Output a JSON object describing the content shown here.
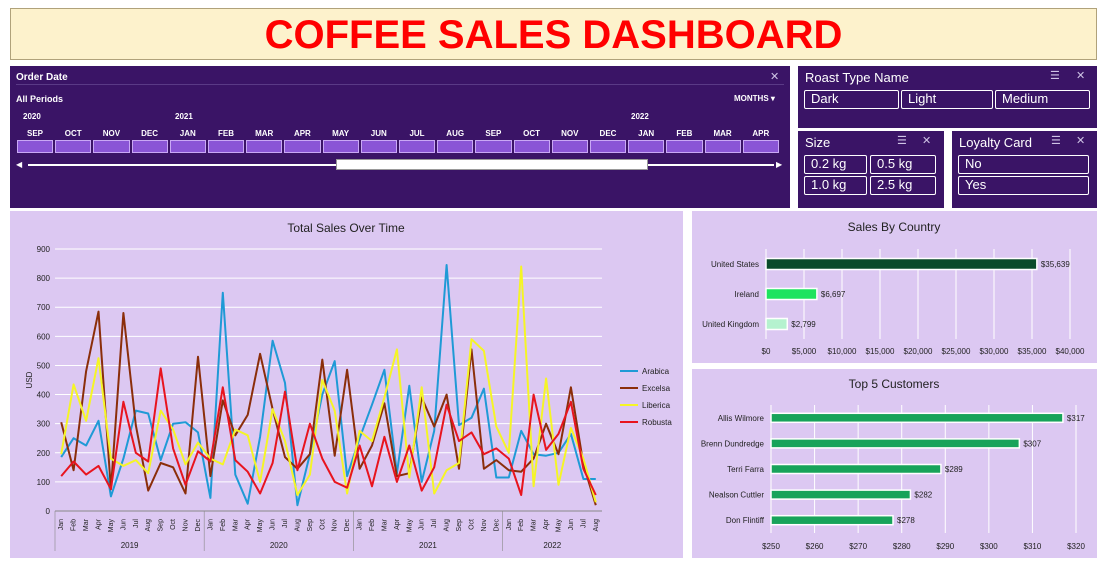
{
  "title": "COFFEE SALES DASHBOARD",
  "timeline": {
    "title": "Order Date",
    "period": "All Periods",
    "granularity": "MONTHS",
    "years": [
      "2020",
      "2021",
      "2022"
    ],
    "months": [
      "SEP",
      "OCT",
      "NOV",
      "DEC",
      "JAN",
      "FEB",
      "MAR",
      "APR",
      "MAY",
      "JUN",
      "JUL",
      "AUG",
      "SEP",
      "OCT",
      "NOV",
      "DEC",
      "JAN",
      "FEB",
      "MAR",
      "APR"
    ]
  },
  "roast_slicer": {
    "title": "Roast Type Name",
    "items": [
      "Dark",
      "Light",
      "Medium"
    ]
  },
  "size_slicer": {
    "title": "Size",
    "items": [
      "0.2 kg",
      "0.5 kg",
      "1.0 kg",
      "2.5 kg"
    ]
  },
  "loyalty_slicer": {
    "title": "Loyalty Card",
    "items": [
      "No",
      "Yes"
    ]
  },
  "chart_data": [
    {
      "type": "line",
      "title": "Total Sales Over Time",
      "ylabel": "USD",
      "xlabel": "",
      "ylim": [
        0,
        900
      ],
      "yticks": [
        0,
        100,
        200,
        300,
        400,
        500,
        600,
        700,
        800,
        900
      ],
      "legend_position": "right",
      "x": [
        "Jan",
        "Feb",
        "Mar",
        "Apr",
        "May",
        "Jun",
        "Jul",
        "Aug",
        "Sep",
        "Oct",
        "Nov",
        "Dec",
        "Jan",
        "Feb",
        "Mar",
        "Apr",
        "May",
        "Jun",
        "Jul",
        "Aug",
        "Sep",
        "Oct",
        "Nov",
        "Dec",
        "Jan",
        "Feb",
        "Mar",
        "Apr",
        "May",
        "Jun",
        "Jul",
        "Aug",
        "Sep",
        "Oct",
        "Nov",
        "Dec",
        "Jan",
        "Feb",
        "Mar",
        "Apr",
        "May",
        "Jun",
        "Jul",
        "Aug"
      ],
      "x_groups": [
        "2019",
        "2020",
        "2021",
        "2022"
      ],
      "series": [
        {
          "name": "Arabica",
          "color": "#1f9ad6",
          "values": [
            185,
            250,
            225,
            310,
            50,
            180,
            345,
            335,
            175,
            300,
            305,
            270,
            45,
            750,
            125,
            25,
            255,
            585,
            440,
            20,
            195,
            400,
            515,
            120,
            250,
            365,
            485,
            130,
            430,
            100,
            275,
            845,
            295,
            320,
            420,
            115,
            115,
            275,
            195,
            190,
            200,
            265,
            110,
            110
          ]
        },
        {
          "name": "Excelsa",
          "color": "#8b2e0a",
          "values": [
            305,
            140,
            480,
            685,
            75,
            680,
            295,
            70,
            165,
            150,
            60,
            530,
            120,
            380,
            260,
            330,
            540,
            350,
            185,
            145,
            195,
            520,
            190,
            485,
            145,
            225,
            370,
            120,
            130,
            390,
            290,
            400,
            145,
            555,
            145,
            175,
            140,
            135,
            180,
            300,
            195,
            425,
            160,
            20
          ]
        },
        {
          "name": "Liberica",
          "color": "#f5f526",
          "values": [
            195,
            435,
            310,
            525,
            180,
            155,
            175,
            130,
            345,
            280,
            160,
            235,
            180,
            160,
            280,
            260,
            100,
            350,
            240,
            55,
            125,
            450,
            345,
            60,
            275,
            240,
            390,
            555,
            115,
            425,
            60,
            140,
            165,
            590,
            550,
            290,
            200,
            840,
            85,
            455,
            90,
            285,
            180,
            30
          ]
        },
        {
          "name": "Robusta",
          "color": "#e8141e",
          "values": [
            120,
            170,
            125,
            155,
            75,
            375,
            200,
            170,
            490,
            215,
            90,
            205,
            170,
            425,
            175,
            135,
            60,
            165,
            410,
            140,
            300,
            180,
            100,
            80,
            225,
            85,
            255,
            100,
            225,
            70,
            150,
            365,
            240,
            270,
            195,
            215,
            180,
            55,
            400,
            210,
            265,
            375,
            145,
            55
          ]
        }
      ]
    },
    {
      "type": "bar",
      "orientation": "horizontal",
      "title": "Sales By Country",
      "categories": [
        "United States",
        "Ireland",
        "United Kingdom"
      ],
      "values": [
        35639,
        6697,
        2799
      ],
      "data_labels": [
        "$35,639",
        "$6,697",
        "$2,799"
      ],
      "colors": [
        "#0a4a2a",
        "#1ee35f",
        "#b5f2cf"
      ],
      "xlim": [
        0,
        40000
      ],
      "xticks": [
        "$0",
        "$5,000",
        "$10,000",
        "$15,000",
        "$20,000",
        "$25,000",
        "$30,000",
        "$35,000",
        "$40,000"
      ]
    },
    {
      "type": "bar",
      "orientation": "horizontal",
      "title": "Top 5 Customers",
      "categories": [
        "Allis Wilmore",
        "Brenn Dundredge",
        "Terri Farra",
        "Nealson Cuttler",
        "Don Flintiff"
      ],
      "values": [
        317,
        307,
        289,
        282,
        278
      ],
      "data_labels": [
        "$317",
        "$307",
        "$289",
        "$282",
        "$278"
      ],
      "color": "#17a35a",
      "xlim": [
        250,
        320
      ],
      "xticks": [
        "$250",
        "$260",
        "$270",
        "$280",
        "$290",
        "$300",
        "$310",
        "$320"
      ]
    }
  ]
}
